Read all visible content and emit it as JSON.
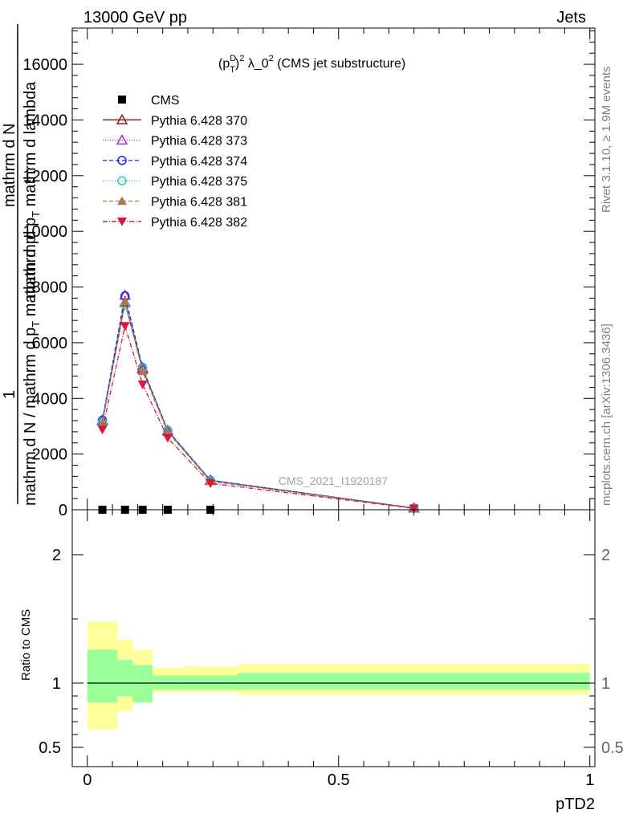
{
  "header": {
    "left": "13000 GeV pp",
    "right": "Jets"
  },
  "plot_title": {
    "base": "(p",
    "sup1": "D",
    "sub1": "T",
    "close": ")",
    "sup2": "2",
    "rest": " λ_0",
    "sup3": "2",
    "tail": " (CMS jet substructure)"
  },
  "side_labels": {
    "rivet": "Rivet 3.1.10, ≥ 1.9M events",
    "mcplots": "mcplots.cern.ch [arXiv:1306.3436]"
  },
  "watermark": "CMS_2021_I1920187",
  "y_label_main": {
    "one": "1",
    "denom": "mathrm d N / mathrm d p",
    "sub": "T",
    "rest": " mathrm d p",
    "numer_top": "mathrm d",
    "numer_n": "N",
    "denom2": "mathrm d p",
    "sub2": "T",
    "denom3": " mathrm d lambda"
  },
  "y_label_ratio": "Ratio to CMS",
  "x_label": "pTD2",
  "chart_data": [
    {
      "type": "line",
      "panel": "main",
      "title": "(p_T^D)^2 λ_0^2 (CMS jet substructure)",
      "xlim": [
        -0.03,
        1.01
      ],
      "ylim": [
        0,
        17300
      ],
      "y_ticks": [
        0,
        2000,
        4000,
        6000,
        8000,
        10000,
        12000,
        14000,
        16000
      ],
      "y_tick_labels": [
        "0",
        "2000",
        "4000",
        "6000",
        "8000",
        "10000",
        "12000",
        "14000",
        "16000"
      ],
      "legend_position": "top-left",
      "series": [
        {
          "name": "CMS",
          "marker": "square-filled",
          "color": "#000000",
          "dash": "none",
          "x": [
            0.03,
            0.075,
            0.11,
            0.16,
            0.245
          ],
          "y": [
            0,
            0,
            0,
            0,
            0
          ]
        },
        {
          "name": "Pythia 6.428 370",
          "marker": "triangle-open",
          "color": "#8b1a1a",
          "dash": "solid",
          "x": [
            0.03,
            0.075,
            0.11,
            0.16,
            0.245,
            0.65
          ],
          "y": [
            3200,
            7450,
            5050,
            2830,
            1050,
            60
          ]
        },
        {
          "name": "Pythia 6.428 373",
          "marker": "triangle-open",
          "color": "#9a32cd",
          "dash": "1,2",
          "x": [
            0.03,
            0.075,
            0.11,
            0.16,
            0.245,
            0.65
          ],
          "y": [
            3220,
            7700,
            5100,
            2850,
            1060,
            60
          ]
        },
        {
          "name": "Pythia 6.428 374",
          "marker": "circle-open",
          "color": "#2020e0",
          "dash": "5,3",
          "x": [
            0.03,
            0.075,
            0.11,
            0.16,
            0.245,
            0.65
          ],
          "y": [
            3210,
            7680,
            5100,
            2850,
            1060,
            60
          ]
        },
        {
          "name": "Pythia 6.428 375",
          "marker": "circle-open",
          "color": "#1ad1c2",
          "dash": "1,2",
          "x": [
            0.03,
            0.075,
            0.11,
            0.16,
            0.245,
            0.65
          ],
          "y": [
            3150,
            7350,
            5080,
            2840,
            1050,
            60
          ]
        },
        {
          "name": "Pythia 6.428 381",
          "marker": "triangle-filled",
          "color": "#a87a4a",
          "dash": "5,3",
          "x": [
            0.03,
            0.075,
            0.11,
            0.16,
            0.245,
            0.65
          ],
          "y": [
            3120,
            7480,
            4970,
            2790,
            1020,
            55
          ]
        },
        {
          "name": "Pythia 6.428 382",
          "marker": "triangle-down-filled",
          "color": "#dc143c",
          "dash": "6,2,1,2",
          "x": [
            0.03,
            0.075,
            0.11,
            0.16,
            0.245,
            0.65
          ],
          "y": [
            2880,
            6600,
            4500,
            2580,
            950,
            50
          ]
        }
      ]
    },
    {
      "type": "area",
      "panel": "ratio",
      "ylabel": "Ratio to CMS",
      "xlabel": "pTD2",
      "xlim": [
        -0.03,
        1.01
      ],
      "ylim": [
        0.35,
        2.35
      ],
      "y_ticks": [
        0.5,
        1,
        2
      ],
      "y_tick_labels": [
        "0.5",
        "1",
        "2"
      ],
      "x_ticks": [
        0,
        0.5,
        1
      ],
      "x_tick_labels": [
        "0",
        "0.5",
        "1"
      ],
      "reference": 1,
      "bins": [
        {
          "x0": 0.0,
          "x1": 0.06,
          "inner": [
            0.85,
            1.26
          ],
          "outer": [
            0.64,
            1.48
          ]
        },
        {
          "x0": 0.06,
          "x1": 0.09,
          "inner": [
            0.9,
            1.18
          ],
          "outer": [
            0.78,
            1.34
          ]
        },
        {
          "x0": 0.09,
          "x1": 0.13,
          "inner": [
            0.85,
            1.14
          ],
          "outer": [
            0.85,
            1.26
          ]
        },
        {
          "x0": 0.13,
          "x1": 0.19,
          "inner": [
            0.95,
            1.06
          ],
          "outer": [
            0.93,
            1.12
          ]
        },
        {
          "x0": 0.19,
          "x1": 0.3,
          "inner": [
            0.95,
            1.06
          ],
          "outer": [
            0.93,
            1.13
          ]
        },
        {
          "x0": 0.3,
          "x1": 1.0,
          "inner": [
            0.95,
            1.08
          ],
          "outer": [
            0.91,
            1.15
          ]
        }
      ]
    }
  ]
}
